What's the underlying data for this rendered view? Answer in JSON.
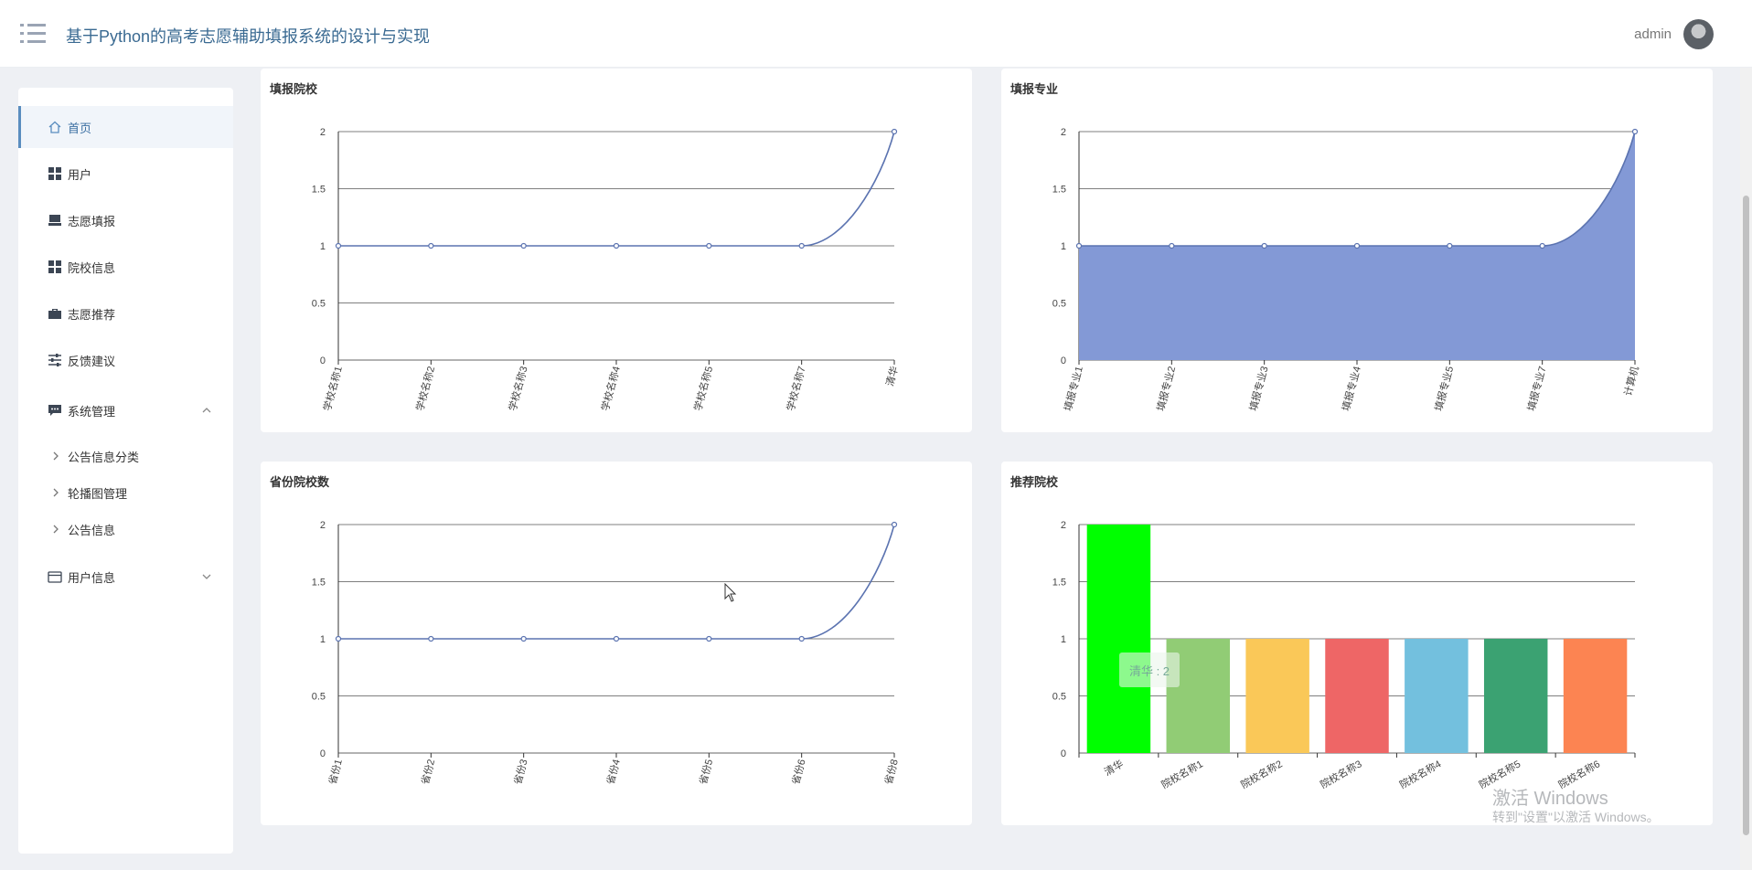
{
  "header": {
    "title": "基于Python的高考志愿辅助填报系统的设计与实现",
    "user": "admin",
    "menu_icon": "menu-list-icon"
  },
  "sidebar": {
    "items": [
      {
        "label": "首页",
        "icon": "home-icon"
      },
      {
        "label": "用户",
        "icon": "grid-icon"
      },
      {
        "label": "志愿填报",
        "icon": "tray-icon"
      },
      {
        "label": "院校信息",
        "icon": "grid-icon"
      },
      {
        "label": "志愿推荐",
        "icon": "briefcase-icon"
      },
      {
        "label": "反馈建议",
        "icon": "sliders-icon"
      },
      {
        "label": "系统管理",
        "icon": "chat-icon"
      },
      {
        "label": "用户信息",
        "icon": "card-icon"
      }
    ],
    "submenu": [
      "公告信息分类",
      "轮播图管理",
      "公告信息"
    ]
  },
  "charts": {
    "chart1_title": "填报院校",
    "chart2_title": "填报专业",
    "chart3_title": "省份院校数",
    "chart4_title": "推荐院校"
  },
  "chart_data": [
    {
      "type": "line",
      "title": "填报院校",
      "categories": [
        "学校名称1",
        "学校名称2",
        "学校名称3",
        "学校名称4",
        "学校名称5",
        "学校名称7",
        "清华"
      ],
      "values": [
        1,
        1,
        1,
        1,
        1,
        1,
        2
      ],
      "yticks": [
        "0",
        "0.5",
        "1",
        "1.5",
        "2"
      ],
      "ylim": [
        0,
        2
      ],
      "color": "#5b73b0"
    },
    {
      "type": "area",
      "title": "填报专业",
      "categories": [
        "填报专业1",
        "填报专业2",
        "填报专业3",
        "填报专业4",
        "填报专业5",
        "填报专业7",
        "计算机"
      ],
      "values": [
        1,
        1,
        1,
        1,
        1,
        1,
        2
      ],
      "yticks": [
        "0",
        "0.5",
        "1",
        "1.5",
        "2"
      ],
      "ylim": [
        0,
        2
      ],
      "color": "#5b73b0",
      "fill": "#8399d6"
    },
    {
      "type": "line",
      "title": "省份院校数",
      "categories": [
        "省份1",
        "省份2",
        "省份3",
        "省份4",
        "省份5",
        "省份6",
        "省份8"
      ],
      "values": [
        1,
        1,
        1,
        1,
        1,
        1,
        2
      ],
      "yticks": [
        "0",
        "0.5",
        "1",
        "1.5",
        "2"
      ],
      "ylim": [
        0,
        2
      ],
      "color": "#5b73b0"
    },
    {
      "type": "bar",
      "title": "推荐院校",
      "categories": [
        "清华",
        "院校名称1",
        "院校名称2",
        "院校名称3",
        "院校名称4",
        "院校名称5",
        "院校名称6"
      ],
      "values": [
        2,
        1,
        1,
        1,
        1,
        1,
        1
      ],
      "yticks": [
        "0",
        "0.5",
        "1",
        "1.5",
        "2"
      ],
      "ylim": [
        0,
        2
      ],
      "colors": [
        "#00ff00",
        "#91cc75",
        "#fac858",
        "#ee6666",
        "#73c0de",
        "#3ba272",
        "#fc8452"
      ],
      "tooltip": "清华 : 2"
    }
  ],
  "watermark": {
    "line1": "激活 Windows",
    "line2": "转到\"设置\"以激活 Windows。"
  }
}
